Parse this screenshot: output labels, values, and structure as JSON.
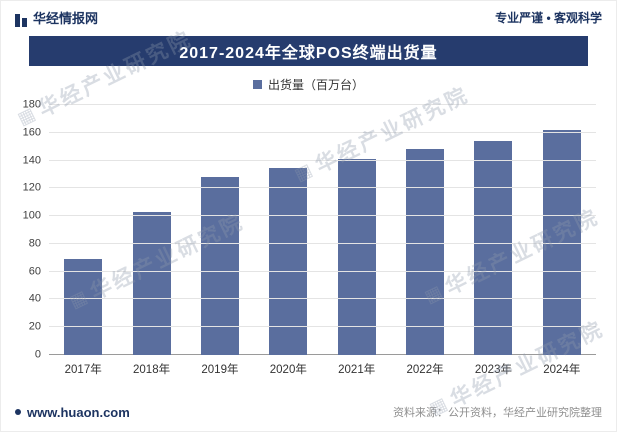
{
  "header": {
    "brand": "华经情报网",
    "slogan": "专业严谨 • 客观科学"
  },
  "banner": {
    "title": "2017-2024年全球POS终端出货量"
  },
  "legend": {
    "label": "出货量（百万台）"
  },
  "chart_data": {
    "type": "bar",
    "title": "2017-2024年全球POS终端出货量",
    "categories": [
      "2017年",
      "2018年",
      "2019年",
      "2020年",
      "2021年",
      "2022年",
      "2023年",
      "2024年"
    ],
    "values": [
      69,
      103,
      128,
      135,
      141,
      148,
      154,
      162
    ],
    "series_name": "出货量（百万台）",
    "xlabel": "",
    "ylabel": "",
    "ylim": [
      0,
      180
    ],
    "ytick_interval": 20,
    "grid": true,
    "legend_position": "top",
    "bar_color": "#5a6e9e"
  },
  "watermark": {
    "icon": "▦",
    "text": "华经产业研究院"
  },
  "footer": {
    "site": "www.huaon.com",
    "source": "资料来源：公开资料，华经产业研究院整理"
  },
  "colors": {
    "banner_bg": "#263c6e",
    "bar": "#5a6e9e",
    "navy": "#1d3461",
    "gridline": "#e4e4e4"
  }
}
